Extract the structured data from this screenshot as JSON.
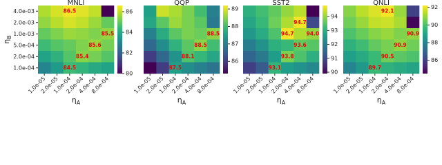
{
  "chart_data": [
    {
      "type": "heatmap",
      "title": "MNLI",
      "colormap": "viridis",
      "x_categories": [
        "1.0e-05",
        "2.0e-05",
        "1.0e-04",
        "2.0e-04",
        "4.0e-04",
        "8.0e-04"
      ],
      "y_categories": [
        "4.0e-03",
        "2.0e-03",
        "1.0e-03",
        "5.0e-04",
        "2.0e-04",
        "1.0e-04"
      ],
      "xlabel": {
        "symbol": "η",
        "subscript": "A"
      },
      "ylabel": {
        "symbol": "η",
        "subscript": "B"
      },
      "values": [
        [
          85.8,
          86.2,
          86.5,
          86.3,
          86.0,
          80.0
        ],
        [
          85.5,
          85.9,
          86.2,
          86.0,
          85.6,
          85.0
        ],
        [
          85.0,
          85.3,
          85.6,
          85.5,
          85.3,
          85.5
        ],
        [
          84.5,
          84.8,
          85.0,
          85.3,
          85.6,
          85.2
        ],
        [
          83.8,
          84.2,
          84.8,
          85.4,
          85.2,
          84.8
        ],
        [
          83.0,
          83.6,
          84.5,
          84.3,
          84.0,
          83.8
        ]
      ],
      "value_labels": [
        [
          null,
          null,
          "86.5",
          null,
          null,
          null
        ],
        [
          null,
          null,
          null,
          null,
          null,
          null
        ],
        [
          null,
          null,
          null,
          null,
          null,
          "85.5"
        ],
        [
          null,
          null,
          null,
          null,
          "85.6",
          null
        ],
        [
          null,
          null,
          null,
          "85.4",
          null,
          null
        ],
        [
          null,
          null,
          "84.5",
          null,
          null,
          null
        ]
      ],
      "clim": [
        80,
        86.6
      ],
      "cticks": [
        80,
        82,
        84,
        86
      ]
    },
    {
      "type": "heatmap",
      "title": "QQP",
      "colormap": "viridis",
      "x_categories": [
        "1.0e-05",
        "2.0e-05",
        "1.0e-04",
        "2.0e-04",
        "4.0e-04",
        "8.0e-04"
      ],
      "xlabel": {
        "symbol": "η",
        "subscript": "A"
      },
      "values": [
        [
          87.5,
          88.9,
          88.7,
          88.4,
          88.0,
          87.0
        ],
        [
          87.6,
          88.2,
          88.6,
          88.4,
          88.2,
          86.9
        ],
        [
          87.0,
          87.7,
          88.2,
          88.4,
          88.3,
          88.5
        ],
        [
          86.6,
          87.2,
          87.8,
          88.2,
          88.5,
          88.0
        ],
        [
          86.0,
          86.6,
          87.3,
          88.1,
          87.9,
          87.6
        ],
        [
          85.3,
          86.0,
          87.5,
          87.2,
          87.0,
          86.8
        ]
      ],
      "value_labels": [
        [
          null,
          null,
          null,
          null,
          null,
          null
        ],
        [
          null,
          null,
          null,
          null,
          null,
          null
        ],
        [
          null,
          null,
          null,
          null,
          null,
          "88.5"
        ],
        [
          null,
          null,
          null,
          null,
          "88.5",
          null
        ],
        [
          null,
          null,
          null,
          "88.1",
          null,
          null
        ],
        [
          null,
          null,
          "87.5",
          null,
          null,
          null
        ]
      ],
      "clim": [
        85.3,
        89.2
      ],
      "cticks": [
        86,
        87,
        88,
        89
      ]
    },
    {
      "type": "heatmap",
      "title": "SST2",
      "colormap": "viridis",
      "x_categories": [
        "1.0e-05",
        "2.0e-05",
        "1.0e-04",
        "2.0e-04",
        "4.0e-04",
        "8.0e-04"
      ],
      "xlabel": {
        "symbol": "η",
        "subscript": "A"
      },
      "values": [
        [
          93.0,
          93.3,
          93.6,
          94.0,
          94.3,
          89.9
        ],
        [
          92.8,
          93.2,
          93.7,
          94.2,
          94.7,
          91.0
        ],
        [
          92.5,
          92.9,
          93.4,
          94.7,
          94.2,
          94.0
        ],
        [
          92.0,
          92.4,
          93.0,
          93.2,
          93.6,
          93.5
        ],
        [
          91.5,
          91.9,
          92.6,
          93.8,
          93.4,
          93.0
        ],
        [
          90.8,
          91.3,
          93.1,
          92.6,
          92.4,
          92.2
        ]
      ],
      "value_labels": [
        [
          null,
          null,
          null,
          null,
          null,
          null
        ],
        [
          null,
          null,
          null,
          null,
          "94.7",
          null
        ],
        [
          null,
          null,
          null,
          "94.7",
          null,
          "94.0"
        ],
        [
          null,
          null,
          null,
          null,
          "93.6",
          null
        ],
        [
          null,
          null,
          null,
          "93.8",
          null,
          null
        ],
        [
          null,
          null,
          "93.1",
          null,
          null,
          null
        ]
      ],
      "clim": [
        89.9,
        94.8
      ],
      "cticks": [
        90,
        91,
        92,
        93,
        94
      ]
    },
    {
      "type": "heatmap",
      "title": "QNLI",
      "colormap": "viridis",
      "x_categories": [
        "1.0e-05",
        "2.0e-05",
        "1.0e-04",
        "2.0e-04",
        "4.0e-04",
        "8.0e-04"
      ],
      "xlabel": {
        "symbol": "η",
        "subscript": "A"
      },
      "values": [
        [
          90.8,
          91.4,
          91.8,
          92.1,
          91.0,
          86.0
        ],
        [
          90.5,
          91.0,
          91.5,
          91.6,
          91.2,
          84.6
        ],
        [
          90.0,
          90.4,
          90.8,
          91.0,
          90.7,
          90.9
        ],
        [
          89.4,
          89.8,
          90.3,
          90.6,
          90.9,
          90.5
        ],
        [
          88.8,
          89.2,
          89.7,
          90.5,
          90.2,
          90.0
        ],
        [
          88.0,
          88.6,
          89.7,
          89.4,
          89.2,
          89.0
        ]
      ],
      "value_labels": [
        [
          null,
          null,
          null,
          "92.1",
          null,
          null
        ],
        [
          null,
          null,
          null,
          null,
          null,
          null
        ],
        [
          null,
          null,
          null,
          null,
          null,
          "90.9"
        ],
        [
          null,
          null,
          null,
          null,
          "90.9",
          null
        ],
        [
          null,
          null,
          null,
          "90.5",
          null,
          null
        ],
        [
          null,
          null,
          "89.7",
          null,
          null,
          null
        ]
      ],
      "clim": [
        84.5,
        92.2
      ],
      "cticks": [
        86,
        88,
        90,
        92
      ]
    }
  ]
}
